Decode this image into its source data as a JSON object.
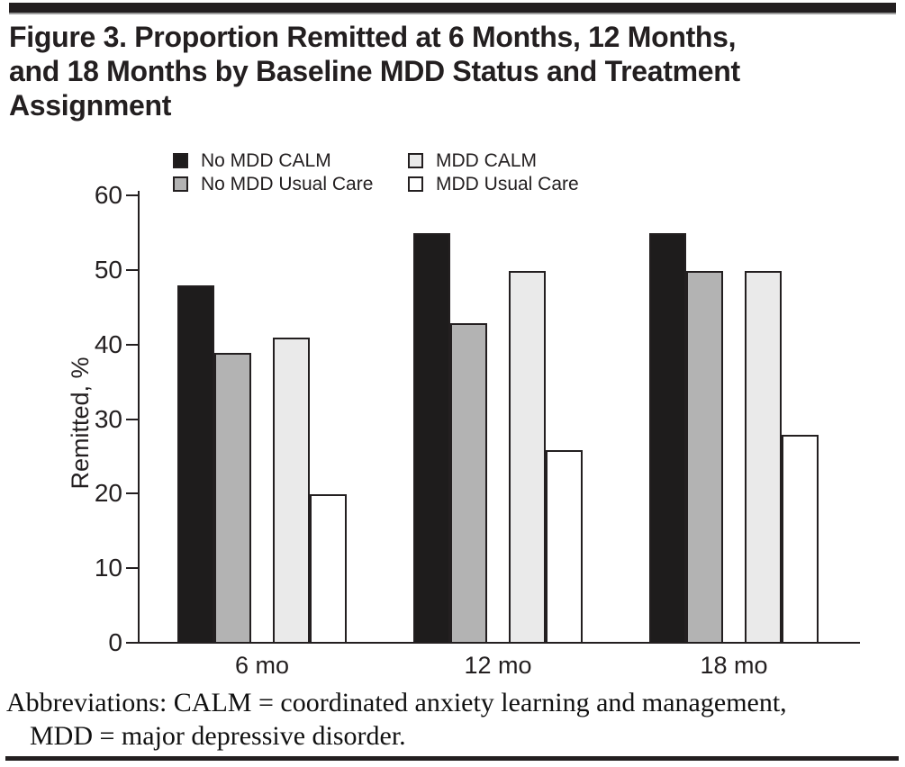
{
  "page": {
    "title_lines": [
      "Figure 3. Proportion Remitted at 6 Months, 12 Months,",
      "and 18 Months by Baseline MDD Status and Treatment",
      "Assignment"
    ],
    "footnote_lines": [
      "Abbreviations: CALM = coordinated anxiety learning and management,",
      "MDD = major depressive disorder."
    ]
  },
  "chart_data": {
    "type": "bar",
    "title": "Figure 3. Proportion Remitted at 6 Months, 12 Months, and 18 Months by Baseline MDD Status and Treatment Assignment",
    "categories": [
      "6 mo",
      "12 mo",
      "18 mo"
    ],
    "series": [
      {
        "name": "No MDD CALM",
        "color": "#1e1c1c",
        "values": [
          48,
          55,
          55
        ]
      },
      {
        "name": "No MDD Usual Care",
        "color": "#b3b3b3",
        "values": [
          39,
          43,
          50
        ]
      },
      {
        "name": "MDD CALM",
        "color": "#eaeaea",
        "values": [
          41,
          50,
          50
        ]
      },
      {
        "name": "MDD Usual Care",
        "color": "#ffffff",
        "values": [
          20,
          26,
          28
        ]
      }
    ],
    "xlabel": "",
    "ylabel": "Remitted, %",
    "ylim": [
      0,
      60
    ],
    "yticks": [
      0,
      10,
      20,
      30,
      40,
      50,
      60
    ],
    "legend_position": "top-inside",
    "grid": false,
    "ink_color": "#231f20",
    "bar_outline_color": "#231f20"
  }
}
